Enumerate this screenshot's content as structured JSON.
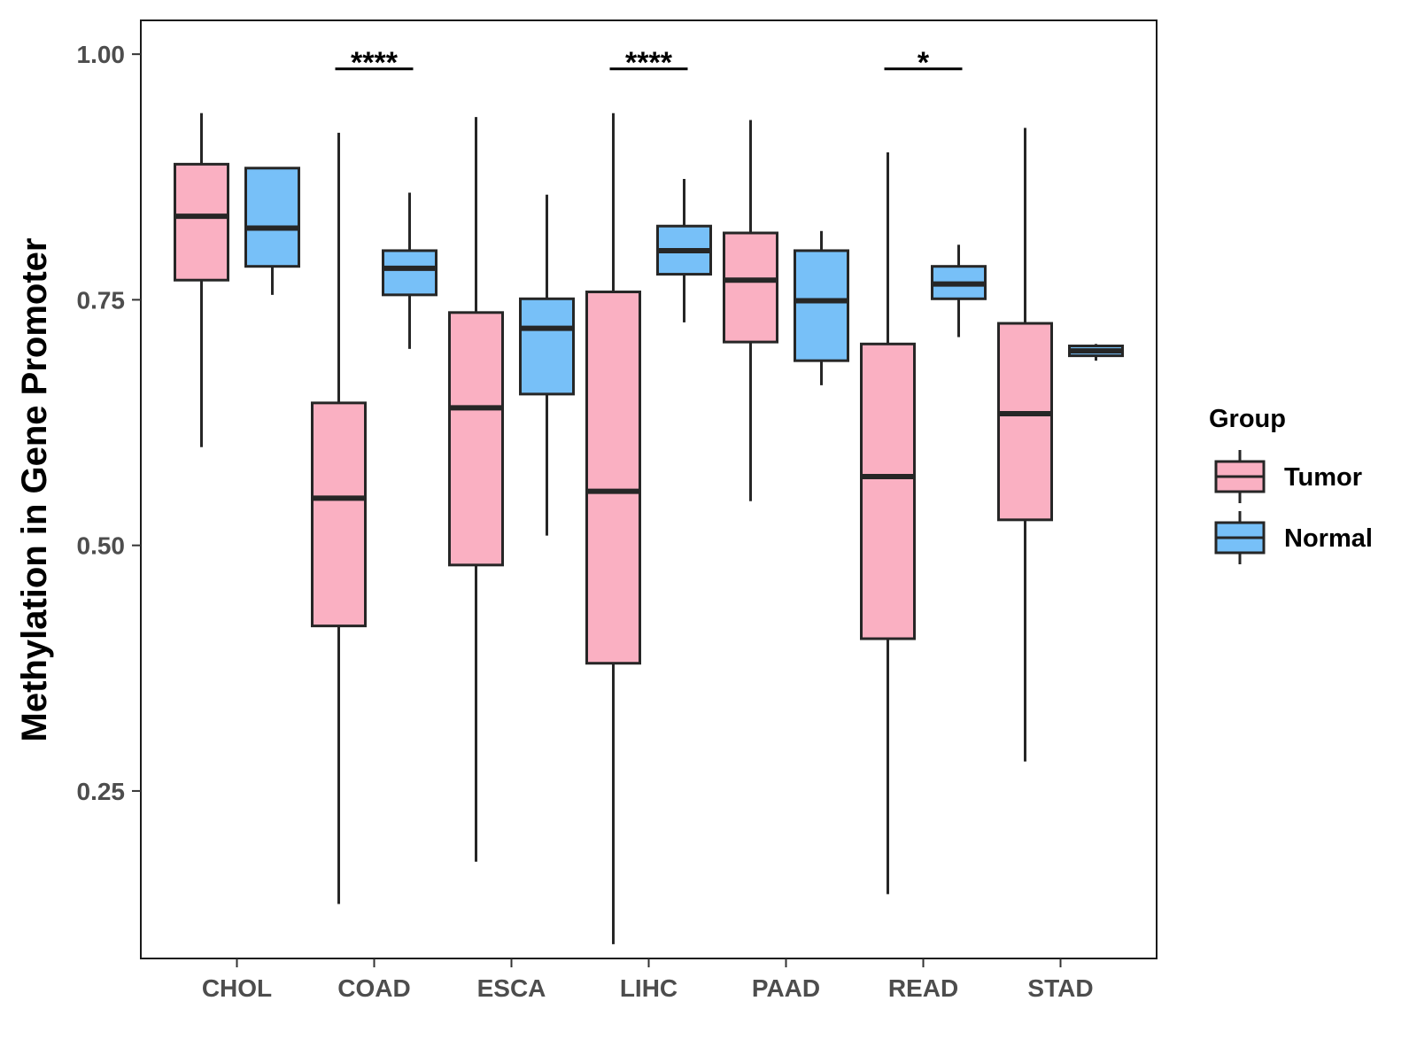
{
  "chart_data": {
    "type": "boxplot",
    "title": "",
    "xlabel": "",
    "ylabel": "Methylation in Gene Promoter",
    "ylim": [
      0.0795,
      1.0344
    ],
    "yticks": [
      0.25,
      0.5,
      0.75,
      1.0
    ],
    "ytick_labels": [
      "0.25",
      "0.50",
      "0.75",
      "1.00"
    ],
    "categories": [
      "CHOL",
      "COAD",
      "ESCA",
      "LIHC",
      "PAAD",
      "READ",
      "STAD"
    ],
    "legend": {
      "title": "Group",
      "position": "right",
      "entries": [
        {
          "name": "Tumor",
          "color": "#FAB0C2"
        },
        {
          "name": "Normal",
          "color": "#77C0F8"
        }
      ]
    },
    "series": [
      {
        "name": "Tumor",
        "color": "#FAB0C2",
        "boxes": [
          {
            "category": "CHOL",
            "min": 0.6,
            "q1": 0.77,
            "median": 0.835,
            "q3": 0.888,
            "max": 0.94
          },
          {
            "category": "COAD",
            "min": 0.135,
            "q1": 0.418,
            "median": 0.548,
            "q3": 0.645,
            "max": 0.92
          },
          {
            "category": "ESCA",
            "min": 0.178,
            "q1": 0.48,
            "median": 0.64,
            "q3": 0.737,
            "max": 0.936
          },
          {
            "category": "LIHC",
            "min": 0.094,
            "q1": 0.38,
            "median": 0.555,
            "q3": 0.758,
            "max": 0.94
          },
          {
            "category": "PAAD",
            "min": 0.545,
            "q1": 0.707,
            "median": 0.77,
            "q3": 0.818,
            "max": 0.933
          },
          {
            "category": "READ",
            "min": 0.145,
            "q1": 0.405,
            "median": 0.57,
            "q3": 0.705,
            "max": 0.9
          },
          {
            "category": "STAD",
            "min": 0.28,
            "q1": 0.526,
            "median": 0.634,
            "q3": 0.726,
            "max": 0.925
          }
        ]
      },
      {
        "name": "Normal",
        "color": "#77C0F8",
        "boxes": [
          {
            "category": "CHOL",
            "min": 0.755,
            "q1": 0.784,
            "median": 0.823,
            "q3": 0.884,
            "max": 0.885
          },
          {
            "category": "COAD",
            "min": 0.7,
            "q1": 0.755,
            "median": 0.782,
            "q3": 0.8,
            "max": 0.859
          },
          {
            "category": "ESCA",
            "min": 0.51,
            "q1": 0.654,
            "median": 0.721,
            "q3": 0.751,
            "max": 0.857
          },
          {
            "category": "LIHC",
            "min": 0.727,
            "q1": 0.776,
            "median": 0.8,
            "q3": 0.825,
            "max": 0.873
          },
          {
            "category": "PAAD",
            "min": 0.663,
            "q1": 0.688,
            "median": 0.749,
            "q3": 0.8,
            "max": 0.82
          },
          {
            "category": "READ",
            "min": 0.712,
            "q1": 0.751,
            "median": 0.766,
            "q3": 0.784,
            "max": 0.806
          },
          {
            "category": "STAD",
            "min": 0.688,
            "q1": 0.693,
            "median": 0.698,
            "q3": 0.703,
            "max": 0.705
          }
        ]
      }
    ],
    "annotations": [
      {
        "category": "COAD",
        "label": "****",
        "y": 0.985
      },
      {
        "category": "LIHC",
        "label": "****",
        "y": 0.985
      },
      {
        "category": "READ",
        "label": "*",
        "y": 0.985
      }
    ]
  }
}
